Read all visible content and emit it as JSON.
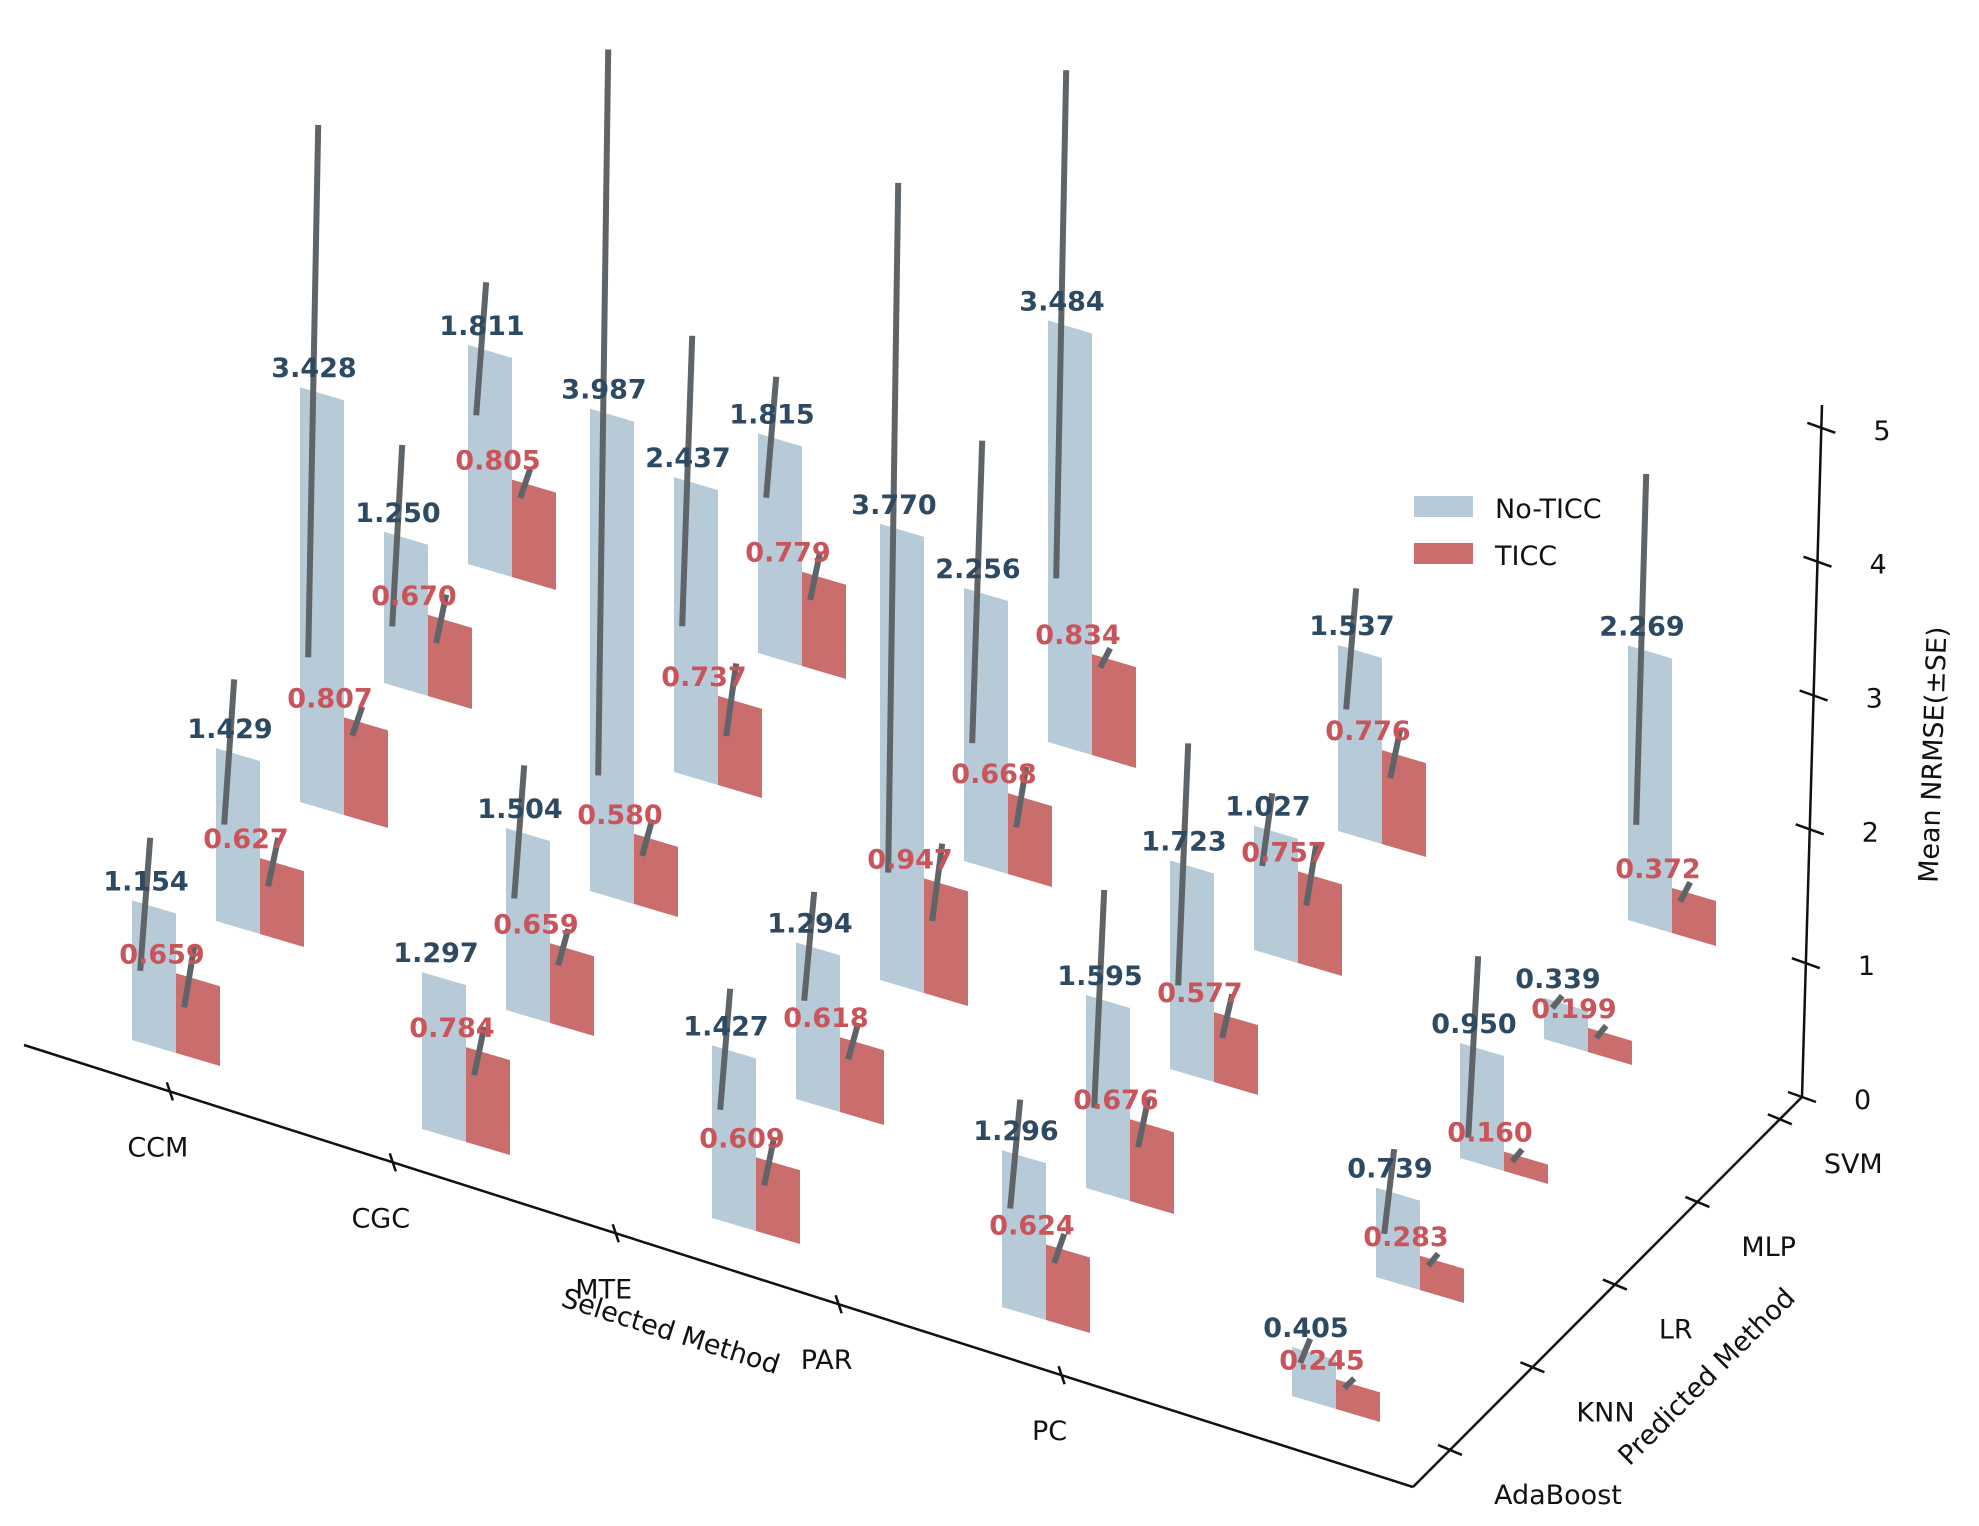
{
  "chart_data": {
    "type": "bar3d",
    "x_axis": {
      "label": "Selected Method",
      "categories": [
        "CCM",
        "CGC",
        "MTE",
        "PAR",
        "PC"
      ]
    },
    "y_axis": {
      "label": "Predicted Method",
      "categories": [
        "AdaBoost",
        "KNN",
        "LR",
        "MLP",
        "SVM"
      ]
    },
    "z_axis": {
      "label": "Mean NRMSE(±SE)",
      "range": [
        0,
        5
      ],
      "ticks": [
        "0",
        "1",
        "2",
        "3",
        "4",
        "5"
      ]
    },
    "legend": [
      {
        "name": "No-TICC",
        "color": "#b6cad8"
      },
      {
        "name": "TICC",
        "color": "#c96d6d"
      }
    ],
    "series": [
      {
        "name": "No-TICC",
        "points": [
          {
            "selected": "CCM",
            "predicted": "AdaBoost",
            "value": 1.154,
            "label": "1.154",
            "se": 0.55
          },
          {
            "selected": "CCM",
            "predicted": "KNN",
            "value": 1.429,
            "label": "1.429",
            "se": 0.6
          },
          {
            "selected": "CCM",
            "predicted": "LR",
            "value": 3.428,
            "label": "3.428",
            "se": 2.2
          },
          {
            "selected": "CCM",
            "predicted": "MLP",
            "value": 1.25,
            "label": "1.250",
            "se": 0.75
          },
          {
            "selected": "CCM",
            "predicted": "SVM",
            "value": 1.811,
            "label": "1.811",
            "se": 0.55
          },
          {
            "selected": "CGC",
            "predicted": "AdaBoost",
            "value": 1.297,
            "label": "1.297",
            "se": 0.0
          },
          {
            "selected": "CGC",
            "predicted": "KNN",
            "value": 1.504,
            "label": "1.504",
            "se": 0.55
          },
          {
            "selected": "CGC",
            "predicted": "LR",
            "value": 3.987,
            "label": "3.987",
            "se": 3.0
          },
          {
            "selected": "CGC",
            "predicted": "MLP",
            "value": 2.437,
            "label": "2.437",
            "se": 1.2
          },
          {
            "selected": "CGC",
            "predicted": "SVM",
            "value": 1.815,
            "label": "1.815",
            "se": 0.5
          },
          {
            "selected": "MTE",
            "predicted": "AdaBoost",
            "value": 1.427,
            "label": "1.427",
            "se": 0.5
          },
          {
            "selected": "MTE",
            "predicted": "KNN",
            "value": 1.294,
            "label": "1.294",
            "se": 0.45
          },
          {
            "selected": "MTE",
            "predicted": "LR",
            "value": 3.77,
            "label": "3.770",
            "se": 2.85
          },
          {
            "selected": "MTE",
            "predicted": "MLP",
            "value": 2.256,
            "label": "2.256",
            "se": 1.25
          },
          {
            "selected": "MTE",
            "predicted": "SVM",
            "value": 3.484,
            "label": "3.484",
            "se": 2.1
          },
          {
            "selected": "PAR",
            "predicted": "AdaBoost",
            "value": 1.296,
            "label": "1.296",
            "se": 0.45
          },
          {
            "selected": "PAR",
            "predicted": "KNN",
            "value": 1.595,
            "label": "1.595",
            "se": 0.9
          },
          {
            "selected": "PAR",
            "predicted": "LR",
            "value": 1.723,
            "label": "1.723",
            "se": 1.0
          },
          {
            "selected": "PAR",
            "predicted": "MLP",
            "value": 1.027,
            "label": "1.027",
            "se": 0.3
          },
          {
            "selected": "PAR",
            "predicted": "SVM",
            "value": 1.537,
            "label": "1.537",
            "se": 0.5
          },
          {
            "selected": "PC",
            "predicted": "AdaBoost",
            "value": 0.405,
            "label": "0.405",
            "se": 0.1
          },
          {
            "selected": "PC",
            "predicted": "KNN",
            "value": 0.739,
            "label": "0.739",
            "se": 0.35
          },
          {
            "selected": "PC",
            "predicted": "LR",
            "value": 0.95,
            "label": "0.950",
            "se": 0.75
          },
          {
            "selected": "PC",
            "predicted": "MLP",
            "value": 0.339,
            "label": "0.339",
            "se": 0.05
          },
          {
            "selected": "PC",
            "predicted": "SVM",
            "value": 2.269,
            "label": "2.269",
            "se": 1.45
          }
        ]
      },
      {
        "name": "TICC",
        "points": [
          {
            "selected": "CCM",
            "predicted": "AdaBoost",
            "value": 0.659,
            "label": "0.659",
            "se": 0.25
          },
          {
            "selected": "CCM",
            "predicted": "KNN",
            "value": 0.627,
            "label": "0.627",
            "se": 0.2
          },
          {
            "selected": "CCM",
            "predicted": "LR",
            "value": 0.807,
            "label": "0.807",
            "se": 0.12
          },
          {
            "selected": "CCM",
            "predicted": "MLP",
            "value": 0.67,
            "label": "0.670",
            "se": 0.2
          },
          {
            "selected": "CCM",
            "predicted": "SVM",
            "value": 0.805,
            "label": "0.805",
            "se": 0.12
          },
          {
            "selected": "CGC",
            "predicted": "AdaBoost",
            "value": 0.784,
            "label": "0.784",
            "se": 0.2
          },
          {
            "selected": "CGC",
            "predicted": "KNN",
            "value": 0.659,
            "label": "0.659",
            "se": 0.15
          },
          {
            "selected": "CGC",
            "predicted": "LR",
            "value": 0.58,
            "label": "0.580",
            "se": 0.15
          },
          {
            "selected": "CGC",
            "predicted": "MLP",
            "value": 0.737,
            "label": "0.737",
            "se": 0.3
          },
          {
            "selected": "CGC",
            "predicted": "SVM",
            "value": 0.779,
            "label": "0.779",
            "se": 0.2
          },
          {
            "selected": "MTE",
            "predicted": "AdaBoost",
            "value": 0.609,
            "label": "0.609",
            "se": 0.2
          },
          {
            "selected": "MTE",
            "predicted": "KNN",
            "value": 0.618,
            "label": "0.618",
            "se": 0.15
          },
          {
            "selected": "MTE",
            "predicted": "LR",
            "value": 0.947,
            "label": "0.947",
            "se": 0.32
          },
          {
            "selected": "MTE",
            "predicted": "MLP",
            "value": 0.668,
            "label": "0.668",
            "se": 0.25
          },
          {
            "selected": "MTE",
            "predicted": "SVM",
            "value": 0.834,
            "label": "0.834",
            "se": 0.08
          },
          {
            "selected": "PAR",
            "predicted": "AdaBoost",
            "value": 0.624,
            "label": "0.624",
            "se": 0.12
          },
          {
            "selected": "PAR",
            "predicted": "KNN",
            "value": 0.676,
            "label": "0.676",
            "se": 0.2
          },
          {
            "selected": "PAR",
            "predicted": "LR",
            "value": 0.577,
            "label": "0.577",
            "se": 0.18
          },
          {
            "selected": "PAR",
            "predicted": "MLP",
            "value": 0.757,
            "label": "0.757",
            "se": 0.25
          },
          {
            "selected": "PAR",
            "predicted": "SVM",
            "value": 0.776,
            "label": "0.776",
            "se": 0.2
          },
          {
            "selected": "PC",
            "predicted": "AdaBoost",
            "value": 0.245,
            "label": "0.245",
            "se": 0.04
          },
          {
            "selected": "PC",
            "predicted": "KNN",
            "value": 0.283,
            "label": "0.283",
            "se": 0.05
          },
          {
            "selected": "PC",
            "predicted": "LR",
            "value": 0.16,
            "label": "0.160",
            "se": 0.05
          },
          {
            "selected": "PC",
            "predicted": "MLP",
            "value": 0.199,
            "label": "0.199",
            "se": 0.05
          },
          {
            "selected": "PC",
            "predicted": "SVM",
            "value": 0.372,
            "label": "0.372",
            "se": 0.08
          }
        ]
      }
    ]
  }
}
